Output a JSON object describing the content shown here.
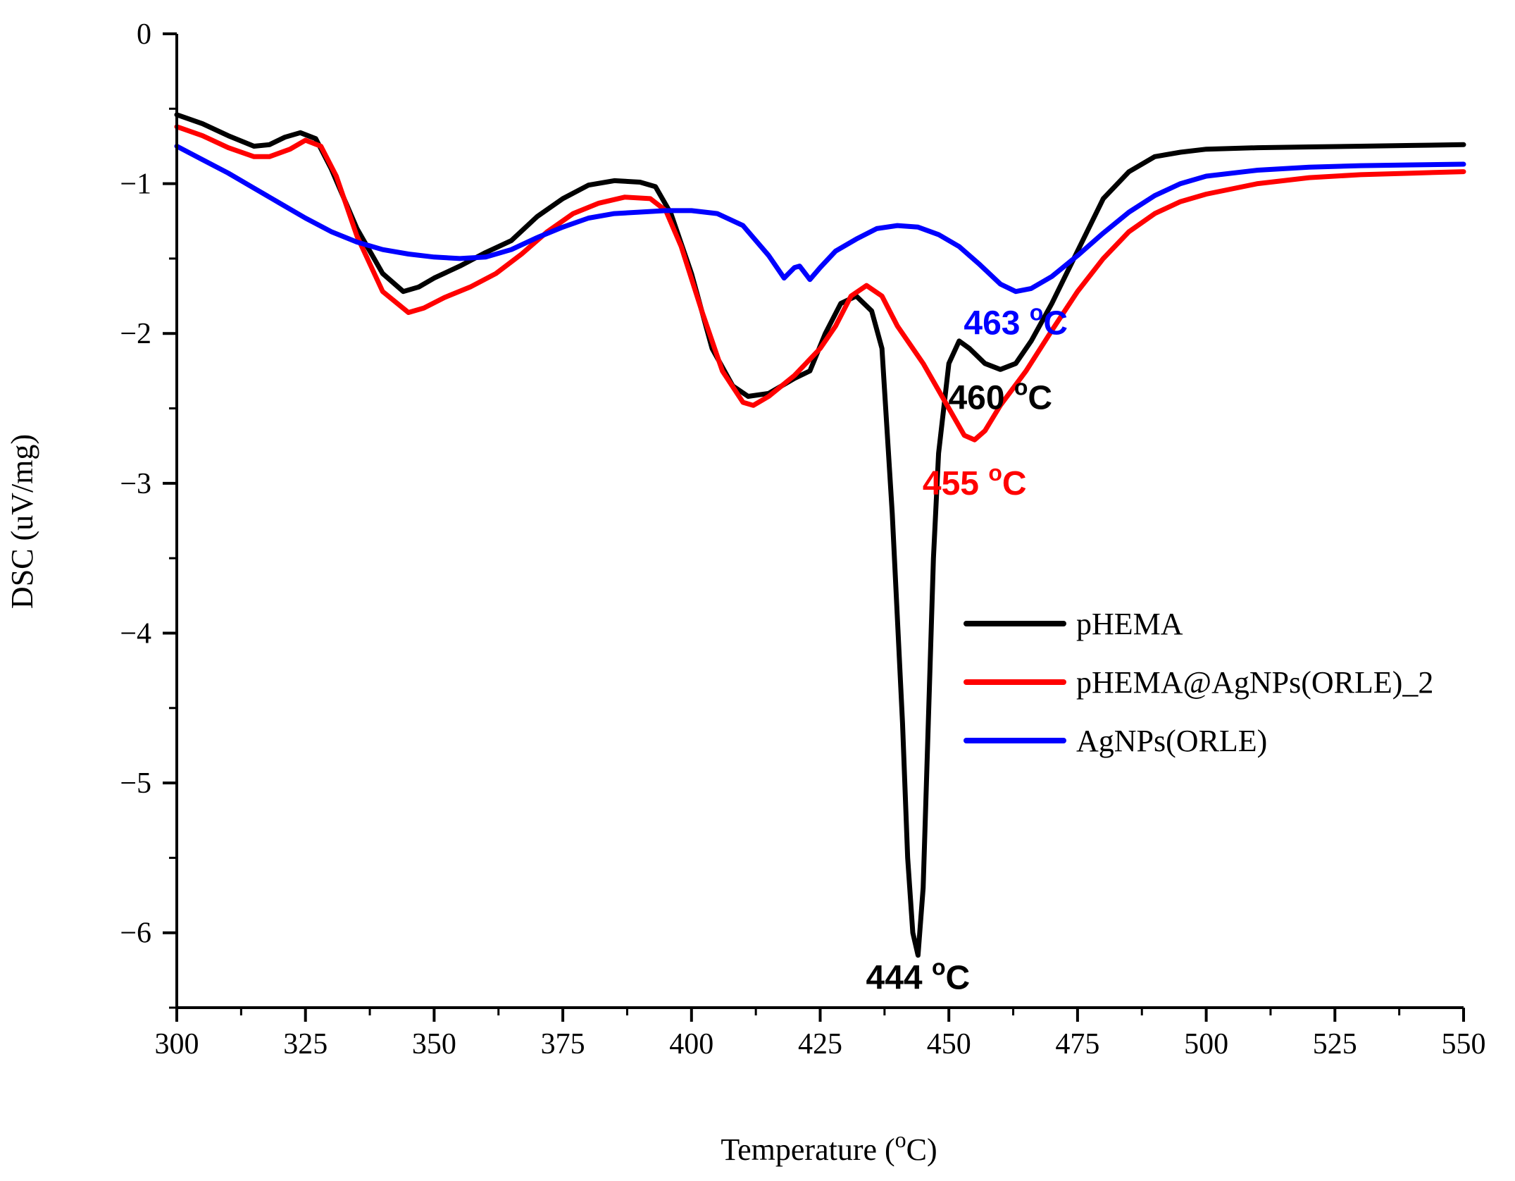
{
  "chart_data": {
    "type": "line",
    "xlabel": "Temperature (",
    "xlabel_sup": "o",
    "xlabel_end": "C)",
    "ylabel": "DSC (uV/mg)",
    "xlim": [
      300,
      550
    ],
    "ylim": [
      -6.5,
      0
    ],
    "x_ticks": [
      300,
      325,
      350,
      375,
      400,
      425,
      450,
      475,
      500,
      525,
      550
    ],
    "x_tick_labels": [
      "300",
      "325",
      "350",
      "375",
      "400",
      "425",
      "450",
      "475",
      "500",
      "525",
      "550"
    ],
    "y_ticks": [
      0,
      -1,
      -2,
      -3,
      -4,
      -5,
      -6
    ],
    "y_tick_labels": [
      "0",
      "−1",
      "−2",
      "−3",
      "−4",
      "−5",
      "−6"
    ],
    "legend_position": "right-middle",
    "series": [
      {
        "name": "pHEMA",
        "color": "#000000",
        "points": [
          [
            300,
            -0.54
          ],
          [
            305,
            -0.6
          ],
          [
            310,
            -0.68
          ],
          [
            315,
            -0.75
          ],
          [
            318,
            -0.74
          ],
          [
            321,
            -0.69
          ],
          [
            324,
            -0.66
          ],
          [
            327,
            -0.7
          ],
          [
            330,
            -0.9
          ],
          [
            335,
            -1.3
          ],
          [
            340,
            -1.6
          ],
          [
            344,
            -1.72
          ],
          [
            347,
            -1.69
          ],
          [
            350,
            -1.63
          ],
          [
            355,
            -1.55
          ],
          [
            360,
            -1.46
          ],
          [
            365,
            -1.38
          ],
          [
            370,
            -1.22
          ],
          [
            375,
            -1.1
          ],
          [
            380,
            -1.01
          ],
          [
            385,
            -0.98
          ],
          [
            390,
            -0.99
          ],
          [
            393,
            -1.02
          ],
          [
            396,
            -1.2
          ],
          [
            400,
            -1.6
          ],
          [
            404,
            -2.1
          ],
          [
            408,
            -2.35
          ],
          [
            411,
            -2.42
          ],
          [
            415,
            -2.4
          ],
          [
            420,
            -2.3
          ],
          [
            423,
            -2.25
          ],
          [
            426,
            -2.0
          ],
          [
            429,
            -1.8
          ],
          [
            432,
            -1.75
          ],
          [
            435,
            -1.85
          ],
          [
            437,
            -2.1
          ],
          [
            439,
            -3.2
          ],
          [
            441,
            -4.6
          ],
          [
            442,
            -5.5
          ],
          [
            443,
            -6.0
          ],
          [
            444,
            -6.15
          ],
          [
            445,
            -5.7
          ],
          [
            446,
            -4.6
          ],
          [
            447,
            -3.5
          ],
          [
            448,
            -2.8
          ],
          [
            450,
            -2.2
          ],
          [
            452,
            -2.05
          ],
          [
            454,
            -2.1
          ],
          [
            457,
            -2.2
          ],
          [
            460,
            -2.24
          ],
          [
            463,
            -2.2
          ],
          [
            466,
            -2.05
          ],
          [
            470,
            -1.8
          ],
          [
            475,
            -1.45
          ],
          [
            480,
            -1.1
          ],
          [
            485,
            -0.92
          ],
          [
            490,
            -0.82
          ],
          [
            495,
            -0.79
          ],
          [
            500,
            -0.77
          ],
          [
            510,
            -0.76
          ],
          [
            520,
            -0.755
          ],
          [
            530,
            -0.75
          ],
          [
            540,
            -0.745
          ],
          [
            550,
            -0.74
          ]
        ]
      },
      {
        "name": "pHEMA@AgNPs(ORLE)_2",
        "color": "#ff0000",
        "points": [
          [
            300,
            -0.62
          ],
          [
            305,
            -0.68
          ],
          [
            310,
            -0.76
          ],
          [
            315,
            -0.82
          ],
          [
            318,
            -0.82
          ],
          [
            322,
            -0.77
          ],
          [
            325,
            -0.71
          ],
          [
            328,
            -0.75
          ],
          [
            331,
            -0.95
          ],
          [
            335,
            -1.35
          ],
          [
            340,
            -1.72
          ],
          [
            345,
            -1.86
          ],
          [
            348,
            -1.83
          ],
          [
            352,
            -1.76
          ],
          [
            357,
            -1.69
          ],
          [
            362,
            -1.6
          ],
          [
            367,
            -1.47
          ],
          [
            372,
            -1.32
          ],
          [
            377,
            -1.2
          ],
          [
            382,
            -1.13
          ],
          [
            387,
            -1.09
          ],
          [
            392,
            -1.1
          ],
          [
            395,
            -1.18
          ],
          [
            398,
            -1.42
          ],
          [
            402,
            -1.85
          ],
          [
            406,
            -2.25
          ],
          [
            410,
            -2.46
          ],
          [
            412,
            -2.48
          ],
          [
            415,
            -2.42
          ],
          [
            420,
            -2.28
          ],
          [
            425,
            -2.1
          ],
          [
            428,
            -1.95
          ],
          [
            431,
            -1.75
          ],
          [
            434,
            -1.68
          ],
          [
            437,
            -1.75
          ],
          [
            440,
            -1.95
          ],
          [
            445,
            -2.2
          ],
          [
            450,
            -2.5
          ],
          [
            453,
            -2.68
          ],
          [
            455,
            -2.71
          ],
          [
            457,
            -2.65
          ],
          [
            460,
            -2.48
          ],
          [
            465,
            -2.25
          ],
          [
            470,
            -1.98
          ],
          [
            475,
            -1.72
          ],
          [
            480,
            -1.5
          ],
          [
            485,
            -1.32
          ],
          [
            490,
            -1.2
          ],
          [
            495,
            -1.12
          ],
          [
            500,
            -1.07
          ],
          [
            510,
            -1.0
          ],
          [
            520,
            -0.96
          ],
          [
            530,
            -0.94
          ],
          [
            540,
            -0.93
          ],
          [
            550,
            -0.92
          ]
        ]
      },
      {
        "name": "AgNPs(ORLE)",
        "color": "#0000ff",
        "points": [
          [
            300,
            -0.75
          ],
          [
            305,
            -0.84
          ],
          [
            310,
            -0.93
          ],
          [
            315,
            -1.03
          ],
          [
            320,
            -1.13
          ],
          [
            325,
            -1.23
          ],
          [
            330,
            -1.32
          ],
          [
            335,
            -1.39
          ],
          [
            340,
            -1.44
          ],
          [
            345,
            -1.47
          ],
          [
            350,
            -1.49
          ],
          [
            355,
            -1.5
          ],
          [
            360,
            -1.49
          ],
          [
            365,
            -1.44
          ],
          [
            370,
            -1.36
          ],
          [
            375,
            -1.29
          ],
          [
            380,
            -1.23
          ],
          [
            385,
            -1.2
          ],
          [
            390,
            -1.19
          ],
          [
            395,
            -1.18
          ],
          [
            400,
            -1.18
          ],
          [
            405,
            -1.2
          ],
          [
            410,
            -1.28
          ],
          [
            415,
            -1.48
          ],
          [
            418,
            -1.63
          ],
          [
            420,
            -1.56
          ],
          [
            421,
            -1.55
          ],
          [
            423,
            -1.64
          ],
          [
            425,
            -1.56
          ],
          [
            428,
            -1.45
          ],
          [
            432,
            -1.37
          ],
          [
            436,
            -1.3
          ],
          [
            440,
            -1.28
          ],
          [
            444,
            -1.29
          ],
          [
            448,
            -1.34
          ],
          [
            452,
            -1.42
          ],
          [
            456,
            -1.54
          ],
          [
            460,
            -1.67
          ],
          [
            463,
            -1.72
          ],
          [
            466,
            -1.7
          ],
          [
            470,
            -1.62
          ],
          [
            475,
            -1.48
          ],
          [
            480,
            -1.33
          ],
          [
            485,
            -1.19
          ],
          [
            490,
            -1.08
          ],
          [
            495,
            -1.0
          ],
          [
            500,
            -0.95
          ],
          [
            510,
            -0.91
          ],
          [
            520,
            -0.89
          ],
          [
            530,
            -0.88
          ],
          [
            540,
            -0.875
          ],
          [
            550,
            -0.87
          ]
        ]
      }
    ],
    "annotations": [
      {
        "value": "463",
        "sup": "o",
        "unit": "C",
        "color": "#0000ff",
        "x": 463,
        "y": -1.93
      },
      {
        "value": "460",
        "sup": "o",
        "unit": "C",
        "color": "#000000",
        "x": 460,
        "y": -2.43
      },
      {
        "value": "455",
        "sup": "o",
        "unit": "C",
        "color": "#ff0000",
        "x": 455,
        "y": -3.0
      },
      {
        "value": "444",
        "sup": "o",
        "unit": "C",
        "color": "#000000",
        "x": 444,
        "y": -6.3
      }
    ]
  }
}
